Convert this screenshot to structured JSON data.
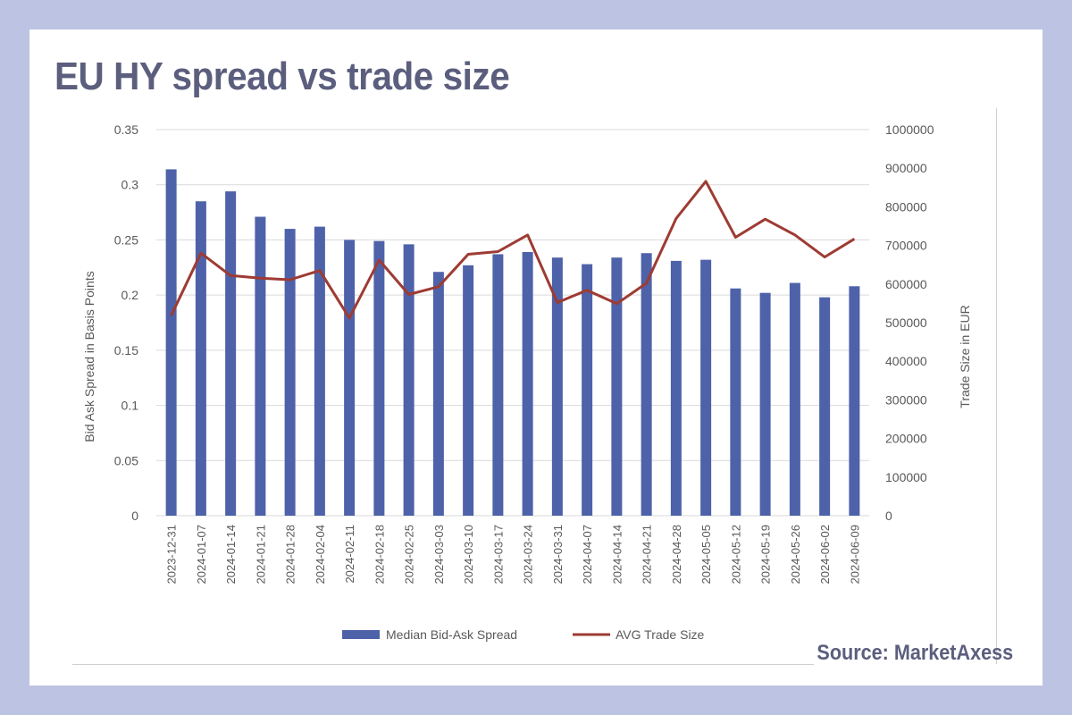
{
  "title": "EU HY spread vs trade size",
  "source": "Source: MarketAxess",
  "colors": {
    "background": "#bcc3e3",
    "card": "#ffffff",
    "title": "#5b5e7d",
    "bars": "#4e62a9",
    "line": "#9e3b33",
    "gridline": "#d9d9d9",
    "axis_text": "#595959"
  },
  "chart_data": {
    "type": "bar",
    "categories": [
      "2023-12-31",
      "2024-01-07",
      "2024-01-14",
      "2024-01-21",
      "2024-01-28",
      "2024-02-04",
      "2024-02-11",
      "2024-02-18",
      "2024-02-25",
      "2024-03-03",
      "2024-03-10",
      "2024-03-17",
      "2024-03-24",
      "2024-03-31",
      "2024-04-07",
      "2024-04-14",
      "2024-04-21",
      "2024-04-28",
      "2024-05-05",
      "2024-05-12",
      "2024-05-19",
      "2024-05-26",
      "2024-06-02",
      "2024-06-09"
    ],
    "series": [
      {
        "name": "Median Bid-Ask Spread",
        "type": "bar",
        "axis": "left",
        "values": [
          0.314,
          0.285,
          0.294,
          0.271,
          0.26,
          0.262,
          0.25,
          0.249,
          0.246,
          0.221,
          0.227,
          0.237,
          0.239,
          0.234,
          0.228,
          0.234,
          0.238,
          0.231,
          0.232,
          0.206,
          0.202,
          0.211,
          0.198,
          0.208
        ]
      },
      {
        "name": "AVG Trade Size",
        "type": "line",
        "axis": "right",
        "values": [
          518000,
          680000,
          622000,
          615000,
          611000,
          635000,
          512000,
          662000,
          573000,
          593000,
          677000,
          684000,
          727000,
          552000,
          584000,
          549000,
          602000,
          770000,
          866000,
          721000,
          768000,
          727000,
          670000,
          717000
        ]
      }
    ],
    "ylabel": "Bid Ask Spread in Basis Points",
    "y2label": "Trade Size in EUR",
    "ylim": [
      0,
      0.35
    ],
    "y2lim": [
      0,
      1000000
    ],
    "yticks": [
      "0.35",
      "0.3",
      "0.25",
      "0.2",
      "0.15",
      "0.1",
      "0.05",
      "0"
    ],
    "y2ticks": [
      "1000000",
      "900000",
      "800000",
      "700000",
      "600000",
      "500000",
      "400000",
      "300000",
      "200000",
      "100000",
      "0"
    ],
    "grid": true,
    "legend_position": "bottom"
  }
}
